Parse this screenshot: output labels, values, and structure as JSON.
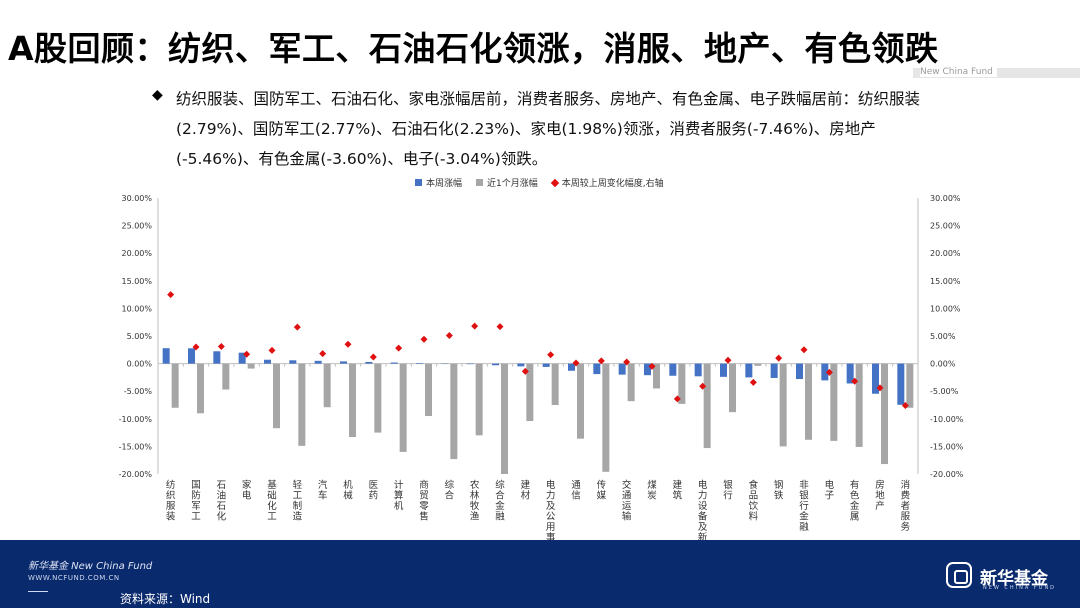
{
  "header": {
    "title": "A股回顾：纺织、军工、石油石化领涨，消服、地产、有色领跌",
    "brand_small": "New China Fund"
  },
  "body": {
    "bullet": "◆",
    "text": "纺织服装、国防军工、石油石化、家电涨幅居前，消费者服务、房地产、有色金属、电子跌幅居前：纺织服装(2.79%)、国防军工(2.77%)、石油石化(2.23%)、家电(1.98%)领涨，消费者服务(-7.46%)、房地产(-5.46%)、有色金属(-3.60%)、电子(-3.04%)领跌。"
  },
  "legend": {
    "weekly": "本周涨幅",
    "monthly": "近1个月涨幅",
    "change": "本周较上周变化幅度,右轴"
  },
  "chart_data": {
    "type": "bar",
    "categories": [
      "纺织服装",
      "国防军工",
      "石油石化",
      "家电",
      "基础化工",
      "轻工制造",
      "汽车",
      "机械",
      "医药",
      "计算机",
      "商贸零售",
      "综合",
      "农林牧渔",
      "综合金融",
      "建材",
      "电力及公用事业",
      "通信",
      "传媒",
      "交通运输",
      "煤炭",
      "建筑",
      "电力设备及新能源",
      "银行",
      "食品饮料",
      "钢铁",
      "非银行金融",
      "电子",
      "有色金属",
      "房地产",
      "消费者服务"
    ],
    "series": [
      {
        "name": "本周涨幅",
        "color": "#4472c4",
        "axis": "left",
        "values": [
          2.79,
          2.77,
          2.23,
          1.98,
          0.7,
          0.6,
          0.5,
          0.4,
          0.3,
          0.2,
          0.1,
          0.05,
          -0.1,
          -0.3,
          -0.5,
          -0.6,
          -1.3,
          -1.9,
          -2.0,
          -2.1,
          -2.2,
          -2.3,
          -2.4,
          -2.5,
          -2.6,
          -2.8,
          -3.04,
          -3.6,
          -5.46,
          -7.46
        ]
      },
      {
        "name": "近1个月涨幅",
        "color": "#a6a6a6",
        "axis": "left",
        "values": [
          -8.0,
          -9.0,
          -4.7,
          -0.9,
          -11.7,
          -14.9,
          -7.9,
          -13.3,
          -12.5,
          -16.0,
          -9.5,
          -17.3,
          -13.0,
          -20.0,
          -10.4,
          -7.5,
          -13.6,
          -19.6,
          -6.8,
          -4.5,
          -7.3,
          -15.3,
          -8.8,
          -0.4,
          -15.0,
          -13.8,
          -14.0,
          -15.1,
          -18.2,
          -8.0
        ]
      },
      {
        "name": "本周较上周变化幅度,右轴",
        "color": "#e01010",
        "axis": "right",
        "marker": "diamond",
        "values": [
          12.5,
          3.0,
          3.1,
          1.7,
          2.4,
          6.6,
          1.8,
          3.5,
          1.2,
          2.8,
          4.4,
          5.1,
          6.8,
          6.7,
          -1.4,
          1.6,
          0.1,
          0.5,
          0.3,
          -0.5,
          -6.4,
          -4.1,
          0.6,
          -3.4,
          1.0,
          2.5,
          -1.6,
          -3.2,
          -4.4,
          -7.6
        ]
      }
    ],
    "ylim_left": [
      -20,
      30
    ],
    "ylim_right": [
      -20,
      30
    ],
    "ytick_labels": [
      "30.00%",
      "25.00%",
      "20.00%",
      "15.00%",
      "10.00%",
      "5.00%",
      "0.00%",
      "-5.00%",
      "-10.00%",
      "-15.00%",
      "-20.00%"
    ],
    "grid": false,
    "legend_position": "top"
  },
  "footer": {
    "company_en": "新华基金 New China Fund",
    "url": "WWW.NCFUND.COM.CN",
    "source": "资料来源：Wind",
    "logo_text": "新华基金",
    "logo_sub": "NEW CHINA FUND"
  }
}
